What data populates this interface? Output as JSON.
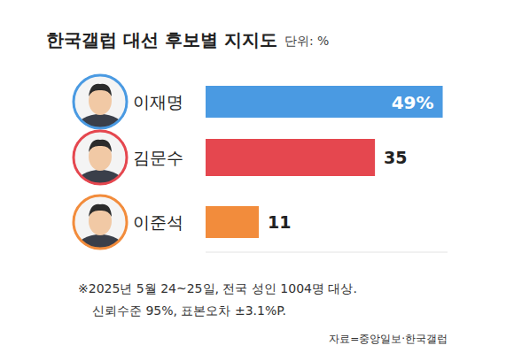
{
  "chart_data": {
    "type": "bar",
    "orientation": "horizontal",
    "title": "한국갤럽 대선 후보별 지지도",
    "subtitle": "단위: %",
    "categories": [
      "이재명",
      "김문수",
      "이준석"
    ],
    "values": [
      49,
      35,
      11
    ],
    "value_labels": [
      "49%",
      "35",
      "11"
    ],
    "colors": [
      "#4a9ae2",
      "#e5474f",
      "#f28c3c"
    ],
    "xlim": [
      0,
      50
    ],
    "data_labels": true,
    "tick_labels": "y",
    "grid": false,
    "notes": [
      "※2025년 5월 24~25일, 전국 성인 1004명 대상.",
      "신뢰수준 95%, 표본오차 ±3.1%P."
    ],
    "source": "자료=중앙일보·한국갤럽"
  }
}
